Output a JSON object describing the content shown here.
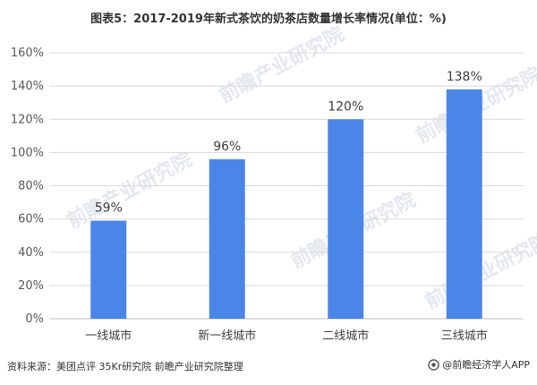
{
  "title": "图表5：2017-2019年新式茶饮的奶茶店数量增长率情况(单位：%)",
  "source": "资料来源：美团点评 35Kr研究院 前瞻产业研究院整理",
  "brand": "@前瞻经济学人APP",
  "watermark": "前瞻产业研究院",
  "colors": {
    "bar": "#4a86e8",
    "grid": "#d9d9d9",
    "axis": "#bfbfbf"
  },
  "chart_data": {
    "type": "bar",
    "title": "图表5：2017-2019年新式茶饮的奶茶店数量增长率情况(单位：%)",
    "categories": [
      "一线城市",
      "新一线城市",
      "二线城市",
      "三线城市"
    ],
    "values": [
      59,
      96,
      120,
      138
    ],
    "data_labels": [
      "59%",
      "96%",
      "120%",
      "138%"
    ],
    "ylim": [
      0,
      160
    ],
    "yticks": [
      0,
      20,
      40,
      60,
      80,
      100,
      120,
      140,
      160
    ],
    "ytick_labels": [
      "0%",
      "20%",
      "40%",
      "60%",
      "80%",
      "100%",
      "120%",
      "140%",
      "160%"
    ],
    "xlabel": "",
    "ylabel": "",
    "grid": true
  }
}
